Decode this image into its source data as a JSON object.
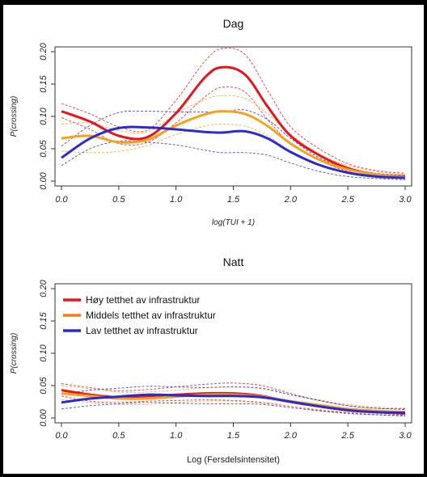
{
  "chart_data": [
    {
      "type": "line",
      "title": "Dag",
      "xlabel": "log(TUI + 1)",
      "ylabel": "P(crossing)",
      "xlim": [
        0,
        3
      ],
      "ylim": [
        0,
        0.2
      ],
      "xticks": [
        "0.0",
        "0.5",
        "1.0",
        "1.5",
        "2.0",
        "2.5",
        "3.0"
      ],
      "yticks": [
        "0.00",
        "0.05",
        "0.10",
        "0.15",
        "0.20"
      ],
      "x": [
        0,
        0.25,
        0.5,
        0.75,
        1.0,
        1.25,
        1.4,
        1.6,
        1.8,
        2.0,
        2.25,
        2.5,
        2.75,
        3.0
      ],
      "series": [
        {
          "color": "#e8141b",
          "values": [
            0.108,
            0.092,
            0.07,
            0.068,
            0.105,
            0.16,
            0.176,
            0.165,
            0.115,
            0.07,
            0.04,
            0.02,
            0.01,
            0.007
          ],
          "lower": [
            0.098,
            0.08,
            0.058,
            0.06,
            0.09,
            0.13,
            0.145,
            0.138,
            0.095,
            0.058,
            0.032,
            0.015,
            0.007,
            0.004
          ],
          "upper": [
            0.12,
            0.104,
            0.084,
            0.079,
            0.125,
            0.185,
            0.205,
            0.196,
            0.14,
            0.084,
            0.05,
            0.027,
            0.016,
            0.012
          ]
        },
        {
          "color": "#f5a31c",
          "values": [
            0.066,
            0.07,
            0.06,
            0.064,
            0.086,
            0.103,
            0.108,
            0.104,
            0.085,
            0.058,
            0.033,
            0.018,
            0.01,
            0.006
          ],
          "lower": [
            0.046,
            0.044,
            0.046,
            0.055,
            0.072,
            0.085,
            0.088,
            0.085,
            0.07,
            0.046,
            0.026,
            0.013,
            0.007,
            0.004
          ],
          "upper": [
            0.088,
            0.09,
            0.078,
            0.076,
            0.104,
            0.126,
            0.132,
            0.128,
            0.104,
            0.072,
            0.042,
            0.024,
            0.015,
            0.01
          ]
        },
        {
          "color": "#2b2bcf",
          "values": [
            0.036,
            0.066,
            0.082,
            0.083,
            0.08,
            0.076,
            0.075,
            0.077,
            0.066,
            0.045,
            0.025,
            0.013,
            0.007,
            0.005
          ],
          "lower": [
            0.024,
            0.05,
            0.062,
            0.06,
            0.056,
            0.048,
            0.044,
            0.044,
            0.04,
            0.028,
            0.015,
            0.007,
            0.004,
            0.002
          ],
          "upper": [
            0.054,
            0.086,
            0.106,
            0.108,
            0.107,
            0.107,
            0.107,
            0.11,
            0.095,
            0.066,
            0.036,
            0.02,
            0.012,
            0.009
          ]
        }
      ]
    },
    {
      "type": "line",
      "title": "Natt",
      "xlabel": "Log (Fersdelsintensitet)",
      "ylabel": "P(crossing)",
      "xlim": [
        0,
        3
      ],
      "ylim": [
        0,
        0.2
      ],
      "xticks": [
        "0.0",
        "0.5",
        "1.0",
        "1.5",
        "2.0",
        "2.5",
        "3.0"
      ],
      "yticks": [
        "0.00",
        "0.05",
        "0.10",
        "0.15",
        "0.20"
      ],
      "legend": {
        "position": "top-left",
        "entries": [
          {
            "label": "Høy tetthet av infrastruktur",
            "color": "#e8141b"
          },
          {
            "label": "Middels tetthet av infrastruktur",
            "color": "#f07d1a"
          },
          {
            "label": "Lav tetthet av infrastruktur",
            "color": "#2b2bcf"
          }
        ]
      },
      "x": [
        0,
        0.25,
        0.5,
        0.75,
        1.0,
        1.25,
        1.5,
        1.75,
        2.0,
        2.25,
        2.5,
        2.75,
        3.0
      ],
      "series": [
        {
          "color": "#e8141b",
          "values": [
            0.043,
            0.036,
            0.032,
            0.034,
            0.036,
            0.038,
            0.038,
            0.034,
            0.025,
            0.018,
            0.012,
            0.009,
            0.007
          ],
          "lower": [
            0.034,
            0.026,
            0.024,
            0.026,
            0.027,
            0.028,
            0.027,
            0.024,
            0.018,
            0.012,
            0.008,
            0.005,
            0.003
          ],
          "upper": [
            0.053,
            0.047,
            0.042,
            0.044,
            0.048,
            0.052,
            0.054,
            0.05,
            0.038,
            0.027,
            0.019,
            0.015,
            0.013
          ]
        },
        {
          "color": "#f5a31c",
          "values": [
            0.038,
            0.034,
            0.03,
            0.03,
            0.033,
            0.036,
            0.036,
            0.033,
            0.026,
            0.02,
            0.014,
            0.011,
            0.009
          ],
          "lower": [
            0.028,
            0.024,
            0.021,
            0.021,
            0.024,
            0.026,
            0.026,
            0.023,
            0.018,
            0.013,
            0.009,
            0.007,
            0.005
          ],
          "upper": [
            0.05,
            0.045,
            0.04,
            0.04,
            0.043,
            0.047,
            0.048,
            0.045,
            0.036,
            0.028,
            0.021,
            0.017,
            0.015
          ]
        },
        {
          "color": "#2b2bcf",
          "values": [
            0.024,
            0.03,
            0.033,
            0.036,
            0.035,
            0.034,
            0.034,
            0.032,
            0.025,
            0.018,
            0.012,
            0.009,
            0.008
          ],
          "lower": [
            0.014,
            0.019,
            0.022,
            0.024,
            0.023,
            0.022,
            0.022,
            0.021,
            0.016,
            0.011,
            0.007,
            0.005,
            0.004
          ],
          "upper": [
            0.037,
            0.043,
            0.046,
            0.049,
            0.048,
            0.047,
            0.048,
            0.046,
            0.036,
            0.027,
            0.019,
            0.015,
            0.014
          ]
        }
      ]
    }
  ]
}
